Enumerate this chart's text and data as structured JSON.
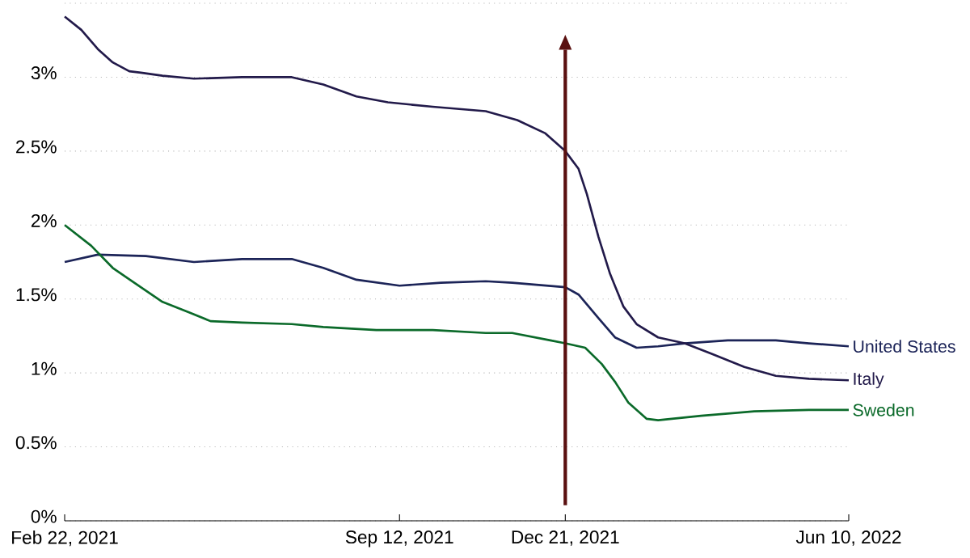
{
  "chart_data": {
    "type": "line",
    "xlim": [
      "2021-02-22",
      "2022-06-10"
    ],
    "xticks": [
      {
        "value": "2021-02-22",
        "label": "Feb 22, 2021"
      },
      {
        "value": "2021-09-12",
        "label": "Sep 12, 2021"
      },
      {
        "value": "2021-12-21",
        "label": "Dec 21, 2021"
      },
      {
        "value": "2022-06-10",
        "label": "Jun 10, 2022"
      }
    ],
    "ylim": [
      0,
      3.5
    ],
    "yticks": [
      {
        "value": 0,
        "label": "0%"
      },
      {
        "value": 0.5,
        "label": "0.5%"
      },
      {
        "value": 1,
        "label": "1%"
      },
      {
        "value": 1.5,
        "label": "1.5%"
      },
      {
        "value": 2,
        "label": "2%"
      },
      {
        "value": 2.5,
        "label": "2.5%"
      },
      {
        "value": 3,
        "label": "3%"
      },
      {
        "value": 3.5,
        "label": null
      }
    ],
    "grid": "y",
    "legend": false,
    "ref_lines": [
      {
        "axis": "x",
        "value": "2021-12-21",
        "color": "#5a1010"
      }
    ],
    "series": [
      {
        "name": "United States",
        "color": "#1c2458",
        "x": [
          "2021-02-22",
          "2021-03-14",
          "2021-04-12",
          "2021-05-11",
          "2021-06-09",
          "2021-07-09",
          "2021-07-28",
          "2021-08-17",
          "2021-09-12",
          "2021-10-07",
          "2021-11-03",
          "2021-11-19",
          "2021-12-21",
          "2021-12-29",
          "2022-01-10",
          "2022-01-20",
          "2022-02-02",
          "2022-02-15",
          "2022-03-03",
          "2022-03-29",
          "2022-04-27",
          "2022-05-17",
          "2022-06-10"
        ],
        "values": [
          1.75,
          1.8,
          1.79,
          1.75,
          1.77,
          1.77,
          1.71,
          1.63,
          1.59,
          1.61,
          1.62,
          1.61,
          1.58,
          1.53,
          1.37,
          1.24,
          1.17,
          1.18,
          1.2,
          1.22,
          1.22,
          1.2,
          1.18
        ]
      },
      {
        "name": "Italy",
        "color": "#221a4a",
        "x": [
          "2021-02-22",
          "2021-03-04",
          "2021-03-14",
          "2021-03-23",
          "2021-04-02",
          "2021-04-09",
          "2021-04-22",
          "2021-05-11",
          "2021-06-09",
          "2021-07-09",
          "2021-07-28",
          "2021-08-17",
          "2021-09-05",
          "2021-10-02",
          "2021-11-03",
          "2021-11-22",
          "2021-12-09",
          "2021-12-21",
          "2021-12-29",
          "2022-01-03",
          "2022-01-10",
          "2022-01-17",
          "2022-01-25",
          "2022-02-02",
          "2022-02-15",
          "2022-03-03",
          "2022-03-19",
          "2022-04-08",
          "2022-04-27",
          "2022-05-17",
          "2022-06-10"
        ],
        "values": [
          3.41,
          3.32,
          3.19,
          3.1,
          3.04,
          3.03,
          3.01,
          2.99,
          3.0,
          3.0,
          2.95,
          2.87,
          2.83,
          2.8,
          2.77,
          2.71,
          2.62,
          2.5,
          2.38,
          2.21,
          1.92,
          1.67,
          1.45,
          1.33,
          1.24,
          1.2,
          1.13,
          1.04,
          0.98,
          0.96,
          0.95
        ]
      },
      {
        "name": "Sweden",
        "color": "#0b6a2a",
        "x": [
          "2021-02-22",
          "2021-03-10",
          "2021-03-23",
          "2021-04-05",
          "2021-04-22",
          "2021-05-08",
          "2021-05-21",
          "2021-06-09",
          "2021-07-09",
          "2021-07-28",
          "2021-08-29",
          "2021-10-02",
          "2021-11-03",
          "2021-11-19",
          "2021-12-12",
          "2021-12-21",
          "2022-01-02",
          "2022-01-12",
          "2022-01-20",
          "2022-01-28",
          "2022-02-08",
          "2022-02-15",
          "2022-03-13",
          "2022-04-14",
          "2022-05-17",
          "2022-06-10"
        ],
        "values": [
          2.0,
          1.86,
          1.71,
          1.61,
          1.48,
          1.41,
          1.35,
          1.34,
          1.33,
          1.31,
          1.29,
          1.29,
          1.27,
          1.27,
          1.22,
          1.2,
          1.17,
          1.06,
          0.94,
          0.8,
          0.69,
          0.68,
          0.71,
          0.74,
          0.75,
          0.75
        ]
      }
    ]
  }
}
